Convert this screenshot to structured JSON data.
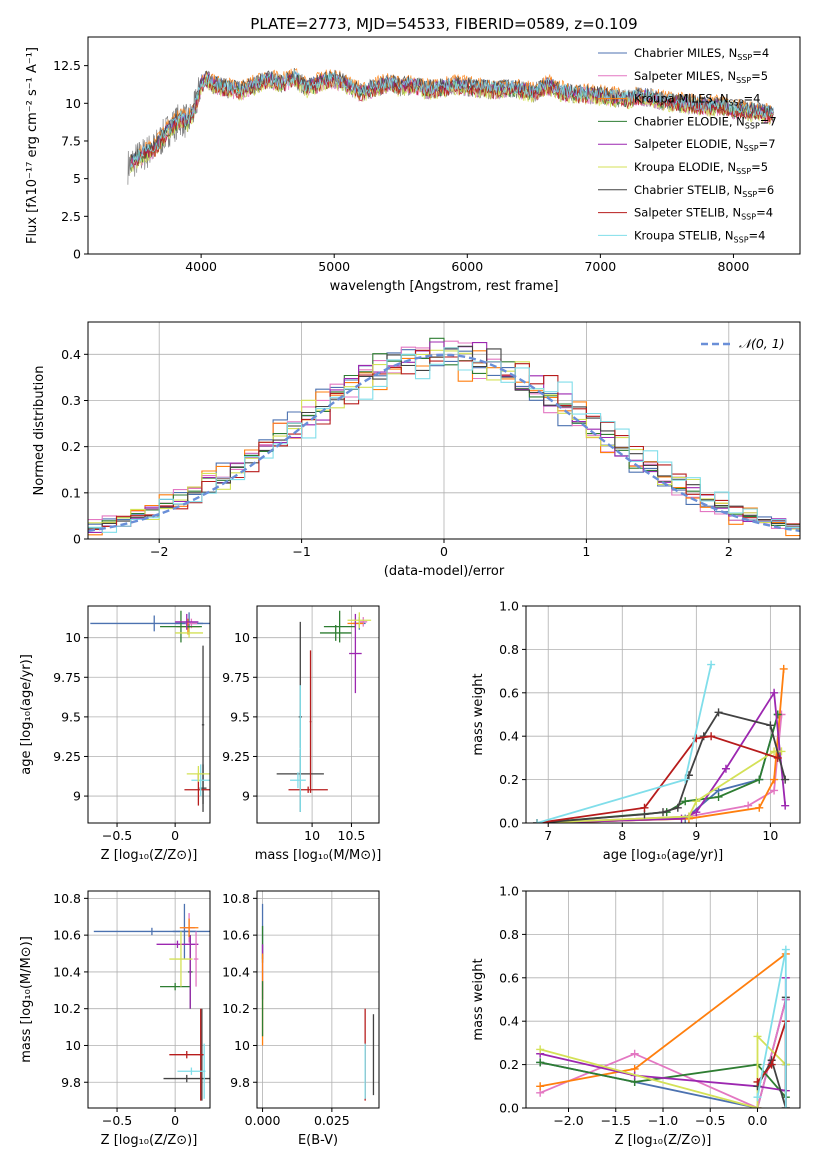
{
  "figure": {
    "title": "PLATE=2773, MJD=54533, FIBERID=0589, z=0.109"
  },
  "legend": [
    {
      "label": "Chabrier MILES, N",
      "sub": "SSP",
      "tail": "=4",
      "color": "#4c72b0"
    },
    {
      "label": "Salpeter MILES, N",
      "sub": "SSP",
      "tail": "=5",
      "color": "#e377c2"
    },
    {
      "label": "Kroupa MILES, N",
      "sub": "SSP",
      "tail": "=4",
      "color": "#ff7f0e"
    },
    {
      "label": "Chabrier ELODIE, N",
      "sub": "SSP",
      "tail": "=7",
      "color": "#2e7d32"
    },
    {
      "label": "Salpeter ELODIE, N",
      "sub": "SSP",
      "tail": "=7",
      "color": "#9c27b0"
    },
    {
      "label": "Kroupa ELODIE, N",
      "sub": "SSP",
      "tail": "=5",
      "color": "#d4e157"
    },
    {
      "label": "Chabrier STELIB, N",
      "sub": "SSP",
      "tail": "=6",
      "color": "#424242"
    },
    {
      "label": "Salpeter STELIB, N",
      "sub": "SSP",
      "tail": "=4",
      "color": "#b71c1c"
    },
    {
      "label": "Kroupa STELIB, N",
      "sub": "SSP",
      "tail": "=4",
      "color": "#80deea"
    }
  ],
  "chart_data": [
    {
      "id": "spectrum",
      "type": "line",
      "xlabel": "wavelength [Angstrom, rest frame]",
      "ylabel": "Flux [fλ10⁻¹⁷ erg cm⁻² s⁻¹ A⁻¹]",
      "xlim": [
        3150,
        8500
      ],
      "ylim": [
        0,
        14.4
      ],
      "xticks": [
        4000,
        5000,
        6000,
        7000,
        8000
      ],
      "yticks": [
        0.0,
        2.5,
        5.0,
        7.5,
        10.0,
        12.5
      ],
      "x": [
        3450,
        3500,
        3550,
        3600,
        3650,
        3700,
        3750,
        3800,
        3850,
        3900,
        3950,
        4000,
        4050,
        4100,
        4200,
        4300,
        4400,
        4500,
        4600,
        4700,
        4800,
        4900,
        5000,
        5100,
        5200,
        5300,
        5400,
        5500,
        5600,
        5700,
        5800,
        5900,
        6000,
        6100,
        6200,
        6300,
        6400,
        6500,
        6600,
        6700,
        6800,
        6900,
        7000,
        7100,
        7200,
        7300,
        7400,
        7500,
        7600,
        7700,
        7800,
        7900,
        8000,
        8100,
        8200,
        8300
      ],
      "y": [
        5.8,
        6.2,
        6.5,
        6.8,
        7.0,
        7.6,
        8.2,
        8.6,
        9.0,
        8.7,
        9.6,
        11.3,
        11.6,
        11.2,
        11.0,
        10.8,
        11.2,
        11.6,
        11.3,
        11.7,
        11.0,
        11.4,
        11.6,
        11.2,
        10.7,
        11.0,
        11.3,
        11.1,
        11.2,
        10.9,
        11.0,
        11.2,
        11.1,
        11.0,
        10.9,
        11.0,
        10.9,
        10.7,
        11.2,
        10.8,
        10.6,
        10.6,
        10.5,
        10.4,
        10.3,
        10.5,
        10.3,
        10.1,
        10.0,
        9.9,
        9.8,
        9.8,
        9.6,
        9.5,
        9.4,
        9.2
      ],
      "model_offsets": [
        0.15,
        -0.2,
        0.3,
        -0.1,
        0.05,
        -0.25,
        0.2,
        -0.15,
        0.1
      ]
    },
    {
      "id": "residuals",
      "type": "histogram",
      "xlabel": "(data-model)/error",
      "ylabel": "Normed distribution",
      "xlim": [
        -2.5,
        2.5
      ],
      "ylim": [
        0,
        0.47
      ],
      "xticks": [
        -2,
        -1,
        0,
        1,
        2
      ],
      "yticks": [
        0.0,
        0.1,
        0.2,
        0.3,
        0.4
      ],
      "bin_edges_start": -2.5,
      "bin_width": 0.1,
      "reference": {
        "label": "𝒩(0, 1)",
        "mean": 0,
        "sigma": 1,
        "color": "#6a8fd8"
      },
      "jitter_seed": [
        0.012,
        -0.018,
        0.024,
        -0.009,
        0.016,
        -0.022,
        0.005,
        -0.013,
        0.02
      ]
    },
    {
      "id": "age-vs-Z",
      "type": "errorbar",
      "xlabel": "Z [log₁₀(Z/Z⊙)]",
      "ylabel": "age  [log₁₀(age/yr)]",
      "xlim": [
        -0.75,
        0.3
      ],
      "ylim": [
        8.83,
        10.2
      ],
      "xticks": [
        -0.5,
        0.0
      ],
      "yticks": [
        9.0,
        9.25,
        9.5,
        9.75,
        10.0
      ],
      "points": [
        {
          "x": 0.12,
          "y": 10.09,
          "xerr": 0.12,
          "yerr": 0.07,
          "s": 1
        },
        {
          "x": -0.18,
          "y": 10.09,
          "xerr": 0.55,
          "yerr": 0.05,
          "s": 1
        },
        {
          "x": 0.14,
          "y": 10.09,
          "xerr": 0.05,
          "yerr": 0.03,
          "s": 2
        },
        {
          "x": 0.11,
          "y": 10.07,
          "xerr": 0.1,
          "yerr": 0.05,
          "s": 3
        },
        {
          "x": 0.05,
          "y": 10.07,
          "xerr": 0.18,
          "yerr": 0.1,
          "s": 4
        },
        {
          "x": 0.1,
          "y": 10.1,
          "xerr": 0.1,
          "yerr": 0.05,
          "s": 5
        },
        {
          "x": 0.12,
          "y": 10.03,
          "xerr": 0.12,
          "yerr": 0.03,
          "s": 6
        },
        {
          "x": 0.24,
          "y": 9.45,
          "xerr": 0.01,
          "yerr": 0.5,
          "s": 7
        },
        {
          "x": 0.24,
          "y": 9.05,
          "xerr": 0.03,
          "yerr": 0.15,
          "s": 7
        },
        {
          "x": 0.2,
          "y": 9.04,
          "xerr": 0.12,
          "yerr": 0.1,
          "s": 8
        },
        {
          "x": 0.22,
          "y": 9.1,
          "xerr": 0.08,
          "yerr": 0.1,
          "s": 9
        },
        {
          "x": 0.2,
          "y": 9.14,
          "xerr": 0.1,
          "yerr": 0.05,
          "s": 6
        }
      ]
    },
    {
      "id": "age-vs-mass",
      "type": "errorbar",
      "xlabel": "mass [log₁₀(M/M⊙)]",
      "ylabel": "",
      "xlim": [
        9.3,
        10.85
      ],
      "ylim": [
        8.83,
        10.2
      ],
      "xticks": [
        10.0,
        10.5
      ],
      "yticks": [
        9.0,
        9.25,
        9.5,
        9.75,
        10.0
      ],
      "points": [
        {
          "x": 10.6,
          "y": 10.09,
          "xerr": 0.08,
          "yerr": 0.04,
          "s": 1
        },
        {
          "x": 10.65,
          "y": 10.1,
          "xerr": 0.05,
          "yerr": 0.03,
          "s": 2
        },
        {
          "x": 10.55,
          "y": 10.09,
          "xerr": 0.1,
          "yerr": 0.03,
          "s": 3
        },
        {
          "x": 10.35,
          "y": 10.07,
          "xerr": 0.2,
          "yerr": 0.1,
          "s": 4
        },
        {
          "x": 10.55,
          "y": 9.9,
          "xerr": 0.08,
          "yerr": 0.25,
          "s": 5
        },
        {
          "x": 10.6,
          "y": 10.11,
          "xerr": 0.15,
          "yerr": 0.05,
          "s": 6
        },
        {
          "x": 10.3,
          "y": 10.03,
          "xerr": 0.2,
          "yerr": 0.05,
          "s": 4
        },
        {
          "x": 9.85,
          "y": 9.5,
          "xerr": 0.02,
          "yerr": 0.6,
          "s": 7
        },
        {
          "x": 9.85,
          "y": 9.14,
          "xerr": 0.3,
          "yerr": 0.02,
          "s": 7
        },
        {
          "x": 9.95,
          "y": 9.04,
          "xerr": 0.25,
          "yerr": 0.02,
          "s": 8
        },
        {
          "x": 9.98,
          "y": 9.47,
          "xerr": 0.01,
          "yerr": 0.45,
          "s": 8
        },
        {
          "x": 9.82,
          "y": 9.1,
          "xerr": 0.1,
          "yerr": 0.05,
          "s": 9
        },
        {
          "x": 9.85,
          "y": 9.3,
          "xerr": 0.01,
          "yerr": 0.4,
          "s": 9
        }
      ]
    },
    {
      "id": "weight-vs-age",
      "type": "line",
      "xlabel": "age  [log₁₀(age/yr)]",
      "ylabel": "mass weight",
      "xlim": [
        6.7,
        10.4
      ],
      "ylim": [
        0,
        1.0
      ],
      "xticks": [
        7,
        8,
        9,
        10
      ],
      "yticks": [
        0.0,
        0.2,
        0.4,
        0.6,
        0.8,
        1.0
      ],
      "series": [
        {
          "s": 0,
          "x": [
            6.85,
            8.85,
            9.3,
            9.85,
            10.1
          ],
          "y": [
            0.0,
            0.02,
            0.15,
            0.2,
            0.5
          ]
        },
        {
          "s": 1,
          "x": [
            6.85,
            8.9,
            9.7,
            10.05,
            10.15
          ],
          "y": [
            0.0,
            0.03,
            0.08,
            0.15,
            0.5
          ]
        },
        {
          "s": 2,
          "x": [
            6.85,
            8.9,
            9.85,
            10.05,
            10.18
          ],
          "y": [
            0.0,
            0.02,
            0.07,
            0.2,
            0.71
          ]
        },
        {
          "s": 3,
          "x": [
            6.85,
            8.6,
            8.85,
            9.3,
            9.85,
            10.1
          ],
          "y": [
            0.0,
            0.05,
            0.1,
            0.12,
            0.2,
            0.5
          ]
        },
        {
          "s": 4,
          "x": [
            6.85,
            8.8,
            9.0,
            9.4,
            10.05,
            10.2
          ],
          "y": [
            0.0,
            0.02,
            0.05,
            0.25,
            0.6,
            0.08
          ]
        },
        {
          "s": 5,
          "x": [
            6.85,
            8.9,
            9.0,
            10.05,
            10.15
          ],
          "y": [
            0.0,
            0.03,
            0.1,
            0.33,
            0.33
          ]
        },
        {
          "s": 6,
          "x": [
            6.85,
            8.3,
            8.55,
            8.75,
            8.9,
            9.1,
            9.3,
            10.0,
            10.2
          ],
          "y": [
            0.0,
            0.04,
            0.05,
            0.07,
            0.22,
            0.4,
            0.51,
            0.45,
            0.2
          ]
        },
        {
          "s": 7,
          "x": [
            6.85,
            8.3,
            9.0,
            9.2,
            10.1
          ],
          "y": [
            0.0,
            0.07,
            0.39,
            0.4,
            0.3
          ]
        },
        {
          "s": 8,
          "x": [
            6.85,
            8.85,
            9.2
          ],
          "y": [
            0.0,
            0.2,
            0.73
          ]
        }
      ]
    },
    {
      "id": "mass-vs-Z",
      "type": "errorbar",
      "xlabel": "Z [log₁₀(Z/Z⊙)]",
      "ylabel": "mass [log₁₀(M/M⊙)]",
      "xlim": [
        -0.75,
        0.3
      ],
      "ylim": [
        9.66,
        10.84
      ],
      "xticks": [
        -0.5,
        0.0
      ],
      "yticks": [
        9.8,
        10.0,
        10.2,
        10.4,
        10.6,
        10.8
      ],
      "points": [
        {
          "x": -0.2,
          "y": 10.62,
          "xerr": 0.5,
          "yerr": 0.02,
          "s": 1
        },
        {
          "x": 0.08,
          "y": 10.62,
          "xerr": 0.1,
          "yerr": 0.15,
          "s": 1
        },
        {
          "x": 0.12,
          "y": 10.64,
          "xerr": 0.05,
          "yerr": 0.08,
          "s": 2
        },
        {
          "x": 0.12,
          "y": 10.64,
          "xerr": 0.08,
          "yerr": 0.05,
          "s": 3
        },
        {
          "x": 0.0,
          "y": 10.32,
          "xerr": 0.13,
          "yerr": 0.02,
          "s": 4
        },
        {
          "x": 0.13,
          "y": 10.4,
          "xerr": 0.02,
          "yerr": 0.2,
          "s": 4
        },
        {
          "x": 0.02,
          "y": 10.55,
          "xerr": 0.18,
          "yerr": 0.02,
          "s": 5
        },
        {
          "x": 0.13,
          "y": 10.4,
          "xerr": 0.01,
          "yerr": 0.2,
          "s": 5
        },
        {
          "x": 0.05,
          "y": 10.47,
          "xerr": 0.1,
          "yerr": 0.15,
          "s": 6
        },
        {
          "x": 0.18,
          "y": 10.47,
          "xerr": 0.02,
          "yerr": 0.15,
          "s": 2
        },
        {
          "x": 0.1,
          "y": 9.82,
          "xerr": 0.2,
          "yerr": 0.02,
          "s": 7
        },
        {
          "x": 0.23,
          "y": 9.95,
          "xerr": 0.01,
          "yerr": 0.25,
          "s": 7
        },
        {
          "x": 0.1,
          "y": 9.95,
          "xerr": 0.15,
          "yerr": 0.02,
          "s": 8
        },
        {
          "x": 0.22,
          "y": 9.95,
          "xerr": 0.01,
          "yerr": 0.25,
          "s": 8
        },
        {
          "x": 0.14,
          "y": 9.86,
          "xerr": 0.12,
          "yerr": 0.02,
          "s": 9
        },
        {
          "x": 0.25,
          "y": 9.86,
          "xerr": 0.01,
          "yerr": 0.15,
          "s": 9
        }
      ]
    },
    {
      "id": "mass-vs-EBV",
      "type": "errorbar",
      "xlabel": "E(B-V)",
      "ylabel": "",
      "xlim": [
        -0.002,
        0.042
      ],
      "ylim": [
        9.66,
        10.84
      ],
      "xticks": [
        0.0,
        0.025
      ],
      "yticks": [
        9.8,
        10.0,
        10.2,
        10.4,
        10.6,
        10.8
      ],
      "points": [
        {
          "x": 0.0,
          "y": 10.62,
          "xerr": 0,
          "yerr": 0.15,
          "s": 1
        },
        {
          "x": 0.0,
          "y": 10.55,
          "xerr": 0,
          "yerr": 0.1,
          "s": 4
        },
        {
          "x": 0.0,
          "y": 10.4,
          "xerr": 0,
          "yerr": 0.15,
          "s": 5
        },
        {
          "x": 0.0,
          "y": 10.25,
          "xerr": 0,
          "yerr": 0.25,
          "s": 3
        },
        {
          "x": 0.0,
          "y": 10.2,
          "xerr": 0,
          "yerr": 0.15,
          "s": 4
        },
        {
          "x": 0.037,
          "y": 9.95,
          "xerr": 0,
          "yerr": 0.25,
          "s": 8
        },
        {
          "x": 0.037,
          "y": 9.86,
          "xerr": 0,
          "yerr": 0.15,
          "s": 9
        },
        {
          "x": 0.04,
          "y": 9.95,
          "xerr": 0,
          "yerr": 0.22,
          "s": 7
        }
      ]
    },
    {
      "id": "weight-vs-Z",
      "type": "line",
      "xlabel": "Z [log₁₀(Z/Z⊙)]",
      "ylabel": "mass weight",
      "xlim": [
        -2.45,
        0.45
      ],
      "ylim": [
        0,
        1.0
      ],
      "xticks": [
        -2.0,
        -1.5,
        -1.0,
        -0.5,
        0.0
      ],
      "yticks": [
        0.0,
        0.2,
        0.4,
        0.6,
        0.8,
        1.0
      ],
      "series": [
        {
          "s": 0,
          "x": [
            -2.3,
            -1.3,
            0.0,
            0.3
          ],
          "y": [
            0.21,
            0.12,
            0.0,
            0.5
          ]
        },
        {
          "s": 1,
          "x": [
            -2.3,
            -1.3,
            0.0,
            0.3
          ],
          "y": [
            0.07,
            0.25,
            0.0,
            0.5
          ]
        },
        {
          "s": 2,
          "x": [
            -2.3,
            -1.3,
            0.3
          ],
          "y": [
            0.1,
            0.18,
            0.71
          ]
        },
        {
          "s": 3,
          "x": [
            -2.3,
            -1.3,
            0.0,
            0.3,
            0.3
          ],
          "y": [
            0.21,
            0.12,
            0.2,
            0.05,
            0.2
          ]
        },
        {
          "s": 4,
          "x": [
            -2.3,
            -1.3,
            0.0,
            0.3,
            0.3
          ],
          "y": [
            0.25,
            0.15,
            0.1,
            0.08,
            0.6
          ]
        },
        {
          "s": 5,
          "x": [
            -2.3,
            0.0,
            0.0,
            0.3
          ],
          "y": [
            0.27,
            0.0,
            0.33,
            0.2
          ]
        },
        {
          "s": 6,
          "x": [
            0.0,
            0.15,
            0.3,
            0.3
          ],
          "y": [
            0.1,
            0.22,
            0.0,
            0.51
          ]
        },
        {
          "s": 7,
          "x": [
            0.0,
            0.15,
            0.3,
            0.3
          ],
          "y": [
            0.12,
            0.2,
            0.4,
            0.0
          ]
        },
        {
          "s": 8,
          "x": [
            0.0,
            0.3,
            0.3
          ],
          "y": [
            0.05,
            0.73,
            0.0
          ]
        }
      ]
    }
  ]
}
